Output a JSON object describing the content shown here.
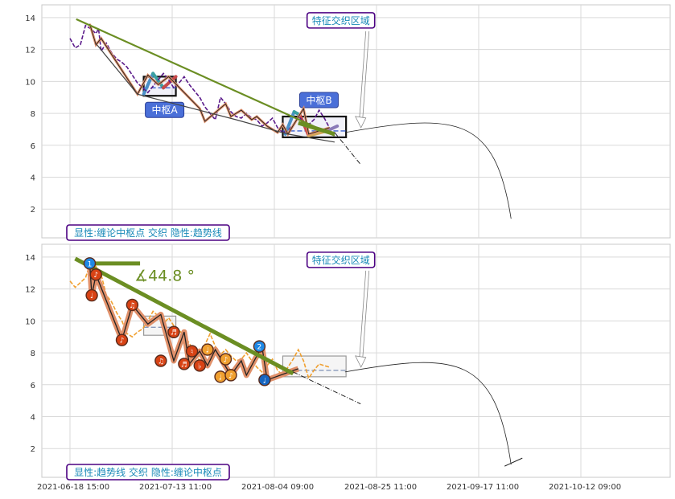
{
  "chart_data": [
    {
      "type": "line",
      "ylim": [
        0.2,
        14.8
      ],
      "yticks": [
        2,
        4,
        6,
        8,
        10,
        12,
        14
      ],
      "x_tick_labels": [
        "2021-06-18 15:00",
        "2021-07-13 11:00",
        "2021-08-04 09:00",
        "2021-08-25 11:00",
        "2021-09-17 11:00",
        "2021-10-12 09:00"
      ],
      "grid": true,
      "price_series": [
        [
          0,
          12.7
        ],
        [
          1,
          12.1
        ],
        [
          2,
          12.3
        ],
        [
          3,
          13.5
        ],
        [
          4,
          13.3
        ],
        [
          5,
          13.0
        ],
        [
          5.5,
          13.3
        ],
        [
          6,
          11.9
        ],
        [
          7,
          12.4
        ],
        [
          8,
          11.8
        ],
        [
          9,
          11.4
        ],
        [
          10,
          11.2
        ],
        [
          11,
          10.9
        ],
        [
          12,
          10.4
        ],
        [
          13,
          9.9
        ],
        [
          14,
          9.6
        ],
        [
          15,
          9.3
        ],
        [
          16,
          9.7
        ],
        [
          17,
          10.1
        ],
        [
          18,
          10.5
        ],
        [
          19,
          10.1
        ],
        [
          20,
          9.6
        ],
        [
          21,
          9.9
        ],
        [
          22,
          10.3
        ],
        [
          23,
          9.8
        ],
        [
          24,
          9.4
        ],
        [
          25,
          9.0
        ],
        [
          26,
          8.4
        ],
        [
          27,
          8.0
        ],
        [
          28,
          7.6
        ],
        [
          29,
          9.0
        ],
        [
          30,
          8.6
        ],
        [
          31,
          8.1
        ],
        [
          32,
          7.8
        ],
        [
          33,
          7.7
        ],
        [
          34,
          8.0
        ],
        [
          35,
          7.7
        ],
        [
          36,
          7.6
        ],
        [
          37,
          7.2
        ],
        [
          38,
          7.4
        ],
        [
          39,
          7.7
        ],
        [
          40,
          7.1
        ],
        [
          41,
          6.8
        ],
        [
          42,
          6.9
        ],
        [
          43,
          7.3
        ],
        [
          44,
          7.8
        ],
        [
          45,
          7.5
        ],
        [
          46,
          7.3
        ],
        [
          47,
          7.6
        ],
        [
          48,
          8.2
        ],
        [
          49,
          7.7
        ],
        [
          50,
          7.1
        ]
      ],
      "bi_path": [
        [
          3.8,
          13.6
        ],
        [
          5,
          12.3
        ],
        [
          6,
          12.7
        ],
        [
          8,
          11.7
        ],
        [
          13,
          9.2
        ],
        [
          15,
          10.4
        ],
        [
          17,
          9.8
        ],
        [
          19,
          10.3
        ],
        [
          22,
          9.3
        ],
        [
          25,
          8.3
        ],
        [
          26,
          7.5
        ],
        [
          30,
          8.6
        ],
        [
          31,
          7.8
        ],
        [
          33,
          8.2
        ],
        [
          35,
          7.6
        ],
        [
          36,
          7.8
        ],
        [
          38,
          7.2
        ],
        [
          40,
          6.8
        ],
        [
          41,
          7.3
        ],
        [
          42,
          6.7
        ],
        [
          45,
          8.3
        ],
        [
          46,
          6.7
        ],
        [
          50,
          7.1
        ]
      ],
      "xd_path": [
        [
          5.2,
          12.3
        ],
        [
          13,
          9.2
        ],
        [
          32,
          7.6
        ],
        [
          42,
          6.7
        ],
        [
          51,
          6.2
        ]
      ],
      "trend_upper": [
        [
          1.2,
          13.9
        ],
        [
          51,
          6.6
        ]
      ],
      "trend_lower": [
        [
          5,
          13.4
        ],
        [
          51,
          6.7
        ]
      ],
      "projection_dashed": [
        [
          51,
          6.8
        ],
        [
          56,
          4.8
        ]
      ],
      "projection_curve": {
        "start": [
          53,
          6.8
        ],
        "end": [
          85,
          1.4
        ]
      },
      "zhongshu": [
        {
          "label": "中枢A",
          "x": [
            14.2,
            20.4
          ],
          "y": [
            9.1,
            10.3
          ],
          "mid": 9.6,
          "strokes": [
            [
              14.2,
              9.2
            ],
            [
              16,
              10.5
            ],
            [
              18,
              9.6
            ],
            [
              20.4,
              10.3
            ]
          ]
        },
        {
          "label": "中枢B",
          "x": [
            41,
            53.2
          ],
          "y": [
            6.5,
            7.8
          ],
          "mid": 6.9,
          "strokes": [
            [
              41.5,
              6.7
            ],
            [
              43.2,
              8.1
            ],
            [
              44.3,
              7.9
            ],
            [
              46,
              6.6
            ],
            [
              49.5,
              6.9
            ],
            [
              51.5,
              7.2
            ]
          ]
        }
      ],
      "annotations": [
        {
          "text": "特征交织区域",
          "anchor": [
            51,
            7.3
          ],
          "pos": [
            46,
            13.85
          ]
        },
        {
          "text": "显性:缠论中枢点 交织 隐性:趋势线",
          "pos": [
            1,
            0.6
          ]
        }
      ]
    },
    {
      "type": "line",
      "ylim": [
        0.2,
        14.8
      ],
      "yticks": [
        2,
        4,
        6,
        8,
        10,
        12,
        14
      ],
      "x_tick_labels": [
        "2021-06-18 15:00",
        "2021-07-13 11:00",
        "2021-08-04 09:00",
        "2021-08-25 11:00",
        "2021-09-17 11:00",
        "2021-10-12 09:00"
      ],
      "grid": true,
      "angle_label": "∡44.8 °",
      "horizontal_ref": [
        [
          4,
          13.6
        ],
        [
          13.5,
          13.6
        ]
      ],
      "price_series": [
        [
          0,
          12.5
        ],
        [
          1,
          12.1
        ],
        [
          2,
          12.4
        ],
        [
          3,
          12.7
        ],
        [
          4,
          13.7
        ],
        [
          5,
          13.4
        ],
        [
          6,
          12.9
        ],
        [
          7,
          11.6
        ],
        [
          8,
          11.2
        ],
        [
          9,
          10.5
        ],
        [
          10,
          10.0
        ],
        [
          11,
          9.2
        ],
        [
          12,
          9.0
        ],
        [
          13,
          9.3
        ],
        [
          14,
          9.5
        ],
        [
          15,
          10.0
        ],
        [
          16,
          10.6
        ],
        [
          17,
          10.3
        ],
        [
          18,
          9.8
        ],
        [
          19,
          10.2
        ],
        [
          20,
          9.7
        ],
        [
          21,
          9.4
        ],
        [
          22,
          9.1
        ],
        [
          23,
          8.6
        ],
        [
          24,
          8.0
        ],
        [
          25,
          7.5
        ],
        [
          26,
          8.5
        ],
        [
          27,
          9.2
        ],
        [
          28,
          8.4
        ],
        [
          29,
          7.9
        ],
        [
          30,
          8.2
        ],
        [
          31,
          7.8
        ],
        [
          32,
          7.5
        ],
        [
          33,
          7.6
        ],
        [
          34,
          8.0
        ],
        [
          35,
          7.5
        ],
        [
          36,
          7.1
        ],
        [
          37,
          6.8
        ],
        [
          38,
          7.2
        ],
        [
          39,
          7.6
        ],
        [
          40,
          6.9
        ],
        [
          41,
          6.6
        ],
        [
          42,
          7.1
        ],
        [
          43,
          7.6
        ],
        [
          44,
          8.2
        ],
        [
          45,
          7.5
        ],
        [
          46,
          6.4
        ],
        [
          47,
          6.9
        ],
        [
          48,
          7.3
        ],
        [
          49,
          7.2
        ],
        [
          50,
          7.1
        ]
      ],
      "bi_path": [
        [
          3.8,
          13.6
        ],
        [
          4.2,
          11.6
        ],
        [
          5,
          12.9
        ],
        [
          10,
          8.8
        ],
        [
          12,
          11.0
        ],
        [
          15,
          9.8
        ],
        [
          17.5,
          10.4
        ],
        [
          20,
          7.5
        ],
        [
          22,
          9.3
        ],
        [
          23,
          7.3
        ],
        [
          25,
          8.1
        ],
        [
          26.5,
          7.2
        ],
        [
          28,
          8.2
        ],
        [
          31,
          6.6
        ],
        [
          33,
          7.5
        ],
        [
          34,
          6.6
        ],
        [
          37,
          8.4
        ],
        [
          38,
          6.3
        ],
        [
          44,
          7.0
        ]
      ],
      "markers": [
        {
          "x": 3.8,
          "y": 13.6,
          "label": "1",
          "color": "#1e88e5"
        },
        {
          "x": 4.2,
          "y": 11.6,
          "label": "♩",
          "color": "#d84315"
        },
        {
          "x": 5,
          "y": 12.9,
          "label": "♪",
          "color": "#d84315"
        },
        {
          "x": 10,
          "y": 8.8,
          "label": "♪",
          "color": "#d84315"
        },
        {
          "x": 12,
          "y": 11.0,
          "label": "♫",
          "color": "#d84315"
        },
        {
          "x": 17.5,
          "y": 7.5,
          "label": "♫",
          "color": "#d84315"
        },
        {
          "x": 20,
          "y": 9.3,
          "label": "♬",
          "color": "#d84315"
        },
        {
          "x": 22,
          "y": 7.3,
          "label": "♬",
          "color": "#d84315"
        },
        {
          "x": 23.5,
          "y": 8.1,
          "label": "♮",
          "color": "#d84315"
        },
        {
          "x": 25,
          "y": 7.2,
          "label": "♭",
          "color": "#d84315"
        },
        {
          "x": 26.5,
          "y": 8.2,
          "label": "♩",
          "color": "#f0a030"
        },
        {
          "x": 29,
          "y": 6.5,
          "label": "♩",
          "color": "#f0a030"
        },
        {
          "x": 30,
          "y": 7.6,
          "label": "♪",
          "color": "#f0a030"
        },
        {
          "x": 31,
          "y": 6.6,
          "label": "♪",
          "color": "#f0a030"
        },
        {
          "x": 36.5,
          "y": 8.4,
          "label": "2",
          "color": "#1e88e5"
        },
        {
          "x": 37.5,
          "y": 6.3,
          "label": "♩",
          "color": "#1565c0"
        }
      ],
      "trend_upper": [
        [
          1,
          13.9
        ],
        [
          43,
          6.7
        ]
      ],
      "projection_dashed": [
        [
          43,
          6.8
        ],
        [
          56,
          4.8
        ]
      ],
      "projection_curve": {
        "start": [
          53,
          6.8
        ],
        "end": [
          85,
          1.0
        ]
      },
      "zhongshu": [
        {
          "label": "",
          "x": [
            14.2,
            20.4
          ],
          "y": [
            9.1,
            10.3
          ],
          "mid": 9.6
        },
        {
          "label": "",
          "x": [
            41,
            53.2
          ],
          "y": [
            6.5,
            7.8
          ],
          "mid": 6.9
        }
      ],
      "annotations": [
        {
          "text": "特征交织区域",
          "anchor": [
            51,
            7.3
          ],
          "pos": [
            46,
            13.85
          ]
        },
        {
          "text": "显性:趋势线 交织 隐性:缠论中枢点",
          "pos": [
            1,
            0.6
          ]
        }
      ]
    }
  ]
}
